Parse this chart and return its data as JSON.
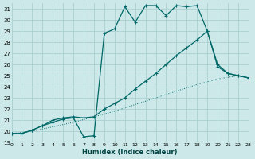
{
  "bg_color": "#cce8e8",
  "grid_color": "#aacfcf",
  "line_color": "#006868",
  "xlim": [
    0,
    23
  ],
  "ylim": [
    19,
    31.5
  ],
  "yticks": [
    19,
    20,
    21,
    22,
    23,
    24,
    25,
    26,
    27,
    28,
    29,
    30,
    31
  ],
  "xticks": [
    0,
    1,
    2,
    3,
    4,
    5,
    6,
    7,
    8,
    9,
    10,
    11,
    12,
    13,
    14,
    15,
    16,
    17,
    18,
    19,
    20,
    21,
    22,
    23
  ],
  "xlabel": "Humidex (Indice chaleur)",
  "series1": [
    [
      0,
      19.8
    ],
    [
      1,
      19.8
    ],
    [
      2,
      20.1
    ],
    [
      3,
      20.5
    ],
    [
      4,
      20.8
    ],
    [
      5,
      21.1
    ],
    [
      6,
      21.2
    ],
    [
      7,
      19.5
    ],
    [
      8,
      19.6
    ],
    [
      9,
      28.8
    ],
    [
      10,
      29.2
    ],
    [
      11,
      31.2
    ],
    [
      12,
      29.8
    ],
    [
      13,
      31.3
    ],
    [
      14,
      31.3
    ],
    [
      15,
      30.4
    ],
    [
      16,
      31.3
    ],
    [
      17,
      31.2
    ],
    [
      18,
      31.3
    ],
    [
      19,
      29.0
    ],
    [
      20,
      25.8
    ],
    [
      21,
      25.2
    ],
    [
      22,
      25.0
    ],
    [
      23,
      24.8
    ]
  ],
  "series2": [
    [
      0,
      19.8
    ],
    [
      1,
      19.8
    ],
    [
      2,
      20.1
    ],
    [
      3,
      20.5
    ],
    [
      4,
      21.0
    ],
    [
      5,
      21.2
    ],
    [
      6,
      21.3
    ],
    [
      7,
      21.2
    ],
    [
      8,
      21.3
    ],
    [
      9,
      22.0
    ],
    [
      10,
      22.5
    ],
    [
      11,
      23.0
    ],
    [
      12,
      23.8
    ],
    [
      13,
      24.5
    ],
    [
      14,
      25.2
    ],
    [
      15,
      26.0
    ],
    [
      16,
      26.8
    ],
    [
      17,
      27.5
    ],
    [
      18,
      28.2
    ],
    [
      19,
      29.0
    ],
    [
      20,
      26.0
    ],
    [
      21,
      25.2
    ],
    [
      22,
      25.0
    ],
    [
      23,
      24.8
    ]
  ],
  "series3_dotted": [
    [
      0,
      19.8
    ],
    [
      2,
      20.0
    ],
    [
      4,
      20.4
    ],
    [
      6,
      20.8
    ],
    [
      8,
      21.3
    ],
    [
      10,
      21.8
    ],
    [
      12,
      22.4
    ],
    [
      14,
      23.0
    ],
    [
      16,
      23.6
    ],
    [
      18,
      24.2
    ],
    [
      20,
      24.7
    ],
    [
      22,
      25.0
    ],
    [
      23,
      24.8
    ]
  ]
}
